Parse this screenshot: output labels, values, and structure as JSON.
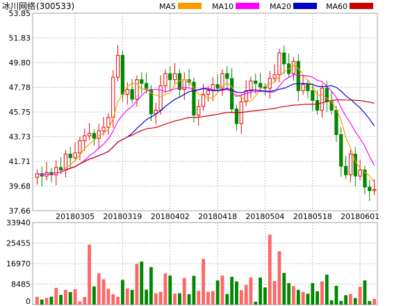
{
  "header": {
    "title": "冰川网络",
    "code": "(300533)"
  },
  "chart_data": {
    "type": "candlestick",
    "price_axis": {
      "ticks": [
        "53.85",
        "51.83",
        "49.80",
        "47.78",
        "45.75",
        "43.73",
        "41.71",
        "39.68",
        "37.66"
      ],
      "range": [
        37.66,
        53.85
      ]
    },
    "volume_axis": {
      "ticks": [
        "33940",
        "25455",
        "16970",
        "8485",
        "0"
      ],
      "range": [
        0,
        33940
      ]
    },
    "x_tick_labels": [
      "20180305",
      "20180319",
      "20180402",
      "20180418",
      "20180504",
      "20180518",
      "20180601"
    ],
    "x_tick_positions": [
      8,
      18,
      28,
      38,
      48,
      58,
      68
    ],
    "legend": [
      {
        "name": "MA5",
        "color": "#ff9900"
      },
      {
        "name": "MA10",
        "color": "#ff00ff"
      },
      {
        "name": "MA20",
        "color": "#0000cc"
      },
      {
        "name": "MA60",
        "color": "#cc0000"
      }
    ],
    "colors": {
      "up": "#e60000",
      "down": "#008800",
      "grid": "#c0c0c0"
    },
    "closes": [
      40.7,
      40.5,
      40.8,
      40.6,
      41.2,
      41.0,
      42.3,
      42.0,
      42.4,
      43.4,
      43.8,
      44.0,
      43.6,
      44.2,
      44.5,
      45.3,
      48.6,
      50.4,
      47.2,
      47.6,
      46.8,
      48.4,
      48.1,
      47.6,
      45.6,
      45.9,
      47.9,
      48.9,
      48.4,
      48.9,
      47.6,
      48.4,
      48.2,
      45.5,
      46.2,
      47.2,
      47.5,
      48.0,
      47.7,
      48.9,
      48.5,
      46.0,
      44.8,
      46.6,
      47.5,
      48.3,
      48.1,
      47.8,
      47.7,
      48.5,
      48.8,
      50.6,
      49.7,
      48.9,
      49.9,
      47.5,
      48.0,
      47.5,
      46.7,
      45.9,
      47.7,
      46.6,
      45.9,
      43.9,
      41.3,
      40.6,
      42.3,
      40.5,
      41.0,
      39.6,
      39.3,
      39.4
    ],
    "opens": [
      40.4,
      40.7,
      40.5,
      40.8,
      40.6,
      41.2,
      41.0,
      42.3,
      42.0,
      42.4,
      43.4,
      43.8,
      44.0,
      43.6,
      44.2,
      44.5,
      45.3,
      48.6,
      50.4,
      47.2,
      47.6,
      46.8,
      48.4,
      48.1,
      47.6,
      45.6,
      45.9,
      47.9,
      48.9,
      48.4,
      48.9,
      47.6,
      48.4,
      48.2,
      45.5,
      46.2,
      47.2,
      47.5,
      48.0,
      47.7,
      48.9,
      48.5,
      46.0,
      44.8,
      46.6,
      47.5,
      48.3,
      48.1,
      47.8,
      47.7,
      48.5,
      48.8,
      50.6,
      49.7,
      48.9,
      49.9,
      47.5,
      48.0,
      47.5,
      46.7,
      45.9,
      47.7,
      46.6,
      45.9,
      43.9,
      41.3,
      40.6,
      42.3,
      40.5,
      41.0,
      39.6,
      39.3
    ],
    "volumes": [
      3200,
      2100,
      2800,
      3300,
      6900,
      4000,
      6100,
      5200,
      6400,
      1300,
      3100,
      24800,
      7500,
      12900,
      10500,
      6500,
      4300,
      3200,
      10200,
      6700,
      6100,
      16800,
      17800,
      6200,
      15500,
      4700,
      5300,
      12900,
      12000,
      4500,
      4700,
      11000,
      4300,
      11900,
      5700,
      18900,
      5300,
      5600,
      10000,
      12000,
      4400,
      11500,
      9600,
      6000,
      8100,
      11200,
      1200,
      11200,
      7100,
      28900,
      9800,
      22100,
      13100,
      8900,
      7600,
      6100,
      5300,
      4500,
      8900,
      5500,
      9600,
      12400,
      1800,
      7800,
      1500,
      3900,
      4400,
      2700,
      7400,
      10000,
      1500,
      2400
    ]
  }
}
